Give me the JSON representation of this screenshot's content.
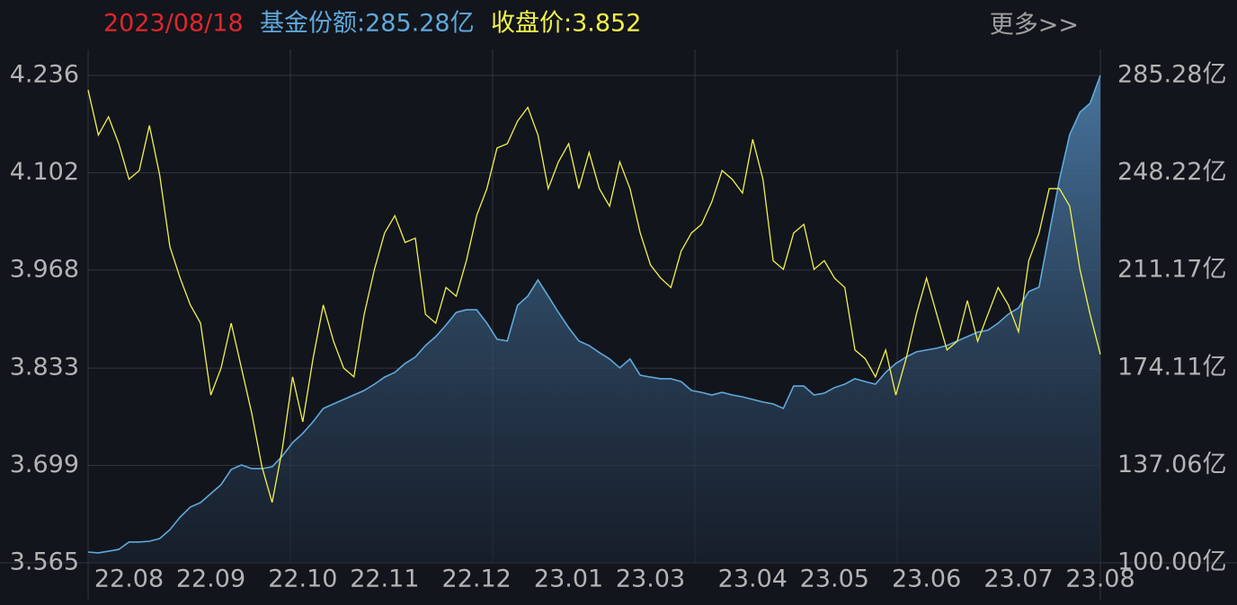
{
  "header": {
    "date": "2023/08/18",
    "shares": "基金份额:285.28亿",
    "price": "收盘价:3.852",
    "more": "更多>>"
  },
  "chart_data": {
    "type": "line",
    "categories": [
      null,
      null,
      null,
      null,
      "22.08",
      null,
      null,
      null,
      null,
      null,
      null,
      null,
      "22.09",
      null,
      null,
      null,
      null,
      null,
      null,
      null,
      null,
      "22.10",
      null,
      null,
      null,
      null,
      null,
      null,
      null,
      "22.11",
      null,
      null,
      null,
      null,
      null,
      null,
      null,
      null,
      "22.12",
      null,
      null,
      null,
      null,
      null,
      null,
      null,
      null,
      "23.01",
      null,
      null,
      null,
      null,
      null,
      null,
      null,
      "23.03",
      null,
      null,
      null,
      null,
      null,
      null,
      null,
      null,
      null,
      "23.04",
      null,
      null,
      null,
      null,
      null,
      null,
      null,
      "23.05",
      null,
      null,
      null,
      null,
      null,
      null,
      null,
      null,
      "23.06",
      null,
      null,
      null,
      null,
      null,
      null,
      null,
      null,
      "23.07",
      null,
      null,
      null,
      null,
      null,
      null,
      null,
      "23.08"
    ],
    "series": [
      {
        "color": "#5fa9dc",
        "axis": "y2",
        "fill": true,
        "values": [
          104.1,
          103.8,
          104.4,
          105.1,
          107.9,
          107.9,
          108.2,
          109.2,
          112.6,
          117.4,
          121.2,
          122.9,
          126.3,
          129.7,
          135.5,
          137.2,
          135.8,
          135.8,
          136.5,
          140.6,
          145.7,
          149.2,
          153.6,
          158.7,
          160.4,
          162.1,
          163.8,
          165.5,
          167.9,
          170.6,
          172.4,
          175.8,
          178.2,
          182.6,
          186.0,
          190.4,
          195.2,
          196.2,
          196.2,
          191.1,
          185.0,
          184.3,
          197.9,
          201.4,
          207.5,
          201.4,
          195.2,
          189.4,
          184.3,
          182.6,
          179.9,
          177.5,
          174.1,
          177.5,
          171.3,
          170.6,
          170.0,
          170.0,
          168.9,
          165.5,
          164.8,
          163.8,
          164.8,
          163.8,
          163.1,
          162.1,
          161.1,
          160.4,
          158.7,
          167.2,
          167.2,
          163.8,
          164.5,
          166.6,
          167.9,
          170.0,
          168.9,
          167.9,
          172.4,
          175.8,
          178.2,
          180.2,
          180.9,
          181.6,
          182.6,
          184.3,
          186.0,
          187.7,
          188.4,
          191.1,
          194.5,
          196.9,
          203.1,
          204.8,
          225.2,
          245.7,
          262.8,
          271.3,
          274.7,
          285.28
        ]
      },
      {
        "color": "#f2f24a",
        "values": [
          4.216,
          4.154,
          4.179,
          4.142,
          4.093,
          4.105,
          4.167,
          4.099,
          4.0,
          3.957,
          3.92,
          3.895,
          3.796,
          3.833,
          3.895,
          3.833,
          3.771,
          3.697,
          3.648,
          3.722,
          3.821,
          3.759,
          3.846,
          3.92,
          3.87,
          3.833,
          3.821,
          3.907,
          3.969,
          4.019,
          4.043,
          4.006,
          4.012,
          3.907,
          3.895,
          3.944,
          3.932,
          3.981,
          4.043,
          4.08,
          4.136,
          4.142,
          4.173,
          4.192,
          4.154,
          4.08,
          4.117,
          4.142,
          4.08,
          4.13,
          4.08,
          4.056,
          4.117,
          4.08,
          4.019,
          3.975,
          3.957,
          3.944,
          3.994,
          4.019,
          4.031,
          4.062,
          4.105,
          4.093,
          4.074,
          4.148,
          4.093,
          3.981,
          3.969,
          4.019,
          4.031,
          3.969,
          3.981,
          3.957,
          3.944,
          3.858,
          3.846,
          3.821,
          3.858,
          3.796,
          3.846,
          3.907,
          3.957,
          3.907,
          3.858,
          3.87,
          3.926,
          3.87,
          3.907,
          3.944,
          3.92,
          3.883,
          3.981,
          4.019,
          4.08,
          4.08,
          4.056,
          3.969,
          3.907,
          3.852
        ]
      }
    ],
    "ylim": [
      3.565,
      4.236
    ],
    "yticks": [
      4.236,
      4.102,
      3.968,
      3.833,
      3.699,
      3.565
    ],
    "y2lim": [
      100,
      285.28
    ],
    "y2ticks": [
      {
        "value": 285.28,
        "label": "285.28亿"
      },
      {
        "value": 248.22,
        "label": "248.22亿"
      },
      {
        "value": 211.17,
        "label": "211.17亿"
      },
      {
        "value": 174.11,
        "label": "174.11亿"
      },
      {
        "value": 137.06,
        "label": "137.06亿"
      },
      {
        "value": 100,
        "label": "100.00亿"
      }
    ],
    "grid": true
  }
}
